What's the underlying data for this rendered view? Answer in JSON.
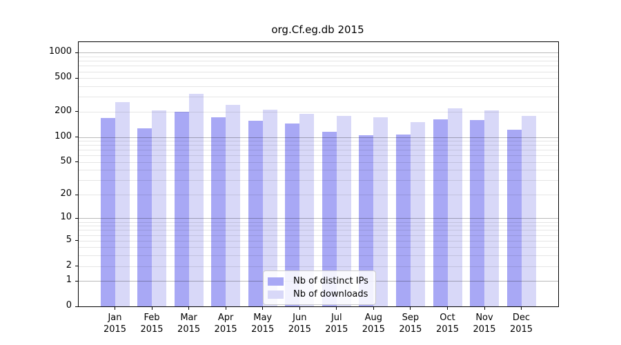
{
  "chart_data": {
    "type": "bar",
    "title": "org.Cf.eg.db 2015",
    "xlabel": "",
    "ylabel": "",
    "y_scale": "log10(value+1)",
    "ylim": [
      0,
      1300
    ],
    "yticks": [
      0,
      1,
      2,
      5,
      10,
      20,
      50,
      100,
      200,
      500,
      1000
    ],
    "grid": true,
    "legend_position": "lower center",
    "categories": [
      "Jan",
      "Feb",
      "Mar",
      "Apr",
      "May",
      "Jun",
      "Jul",
      "Aug",
      "Sep",
      "Oct",
      "Nov",
      "Dec"
    ],
    "x_year_label": "2015",
    "series": [
      {
        "name": "Nb of distinct IPs",
        "color": "#a8a8f5",
        "values": [
          170,
          126,
          199,
          172,
          156,
          146,
          116,
          105,
          107,
          162,
          159,
          121
        ]
      },
      {
        "name": "Nb of downloads",
        "color": "#d8d8f8",
        "values": [
          260,
          208,
          324,
          240,
          212,
          189,
          177,
          173,
          149,
          220,
          207,
          179
        ]
      }
    ],
    "colors": {
      "major_grid": "#bbbbbb",
      "minor_grid": "#e5e5e5",
      "axis": "#000000",
      "background": "#ffffff"
    }
  }
}
